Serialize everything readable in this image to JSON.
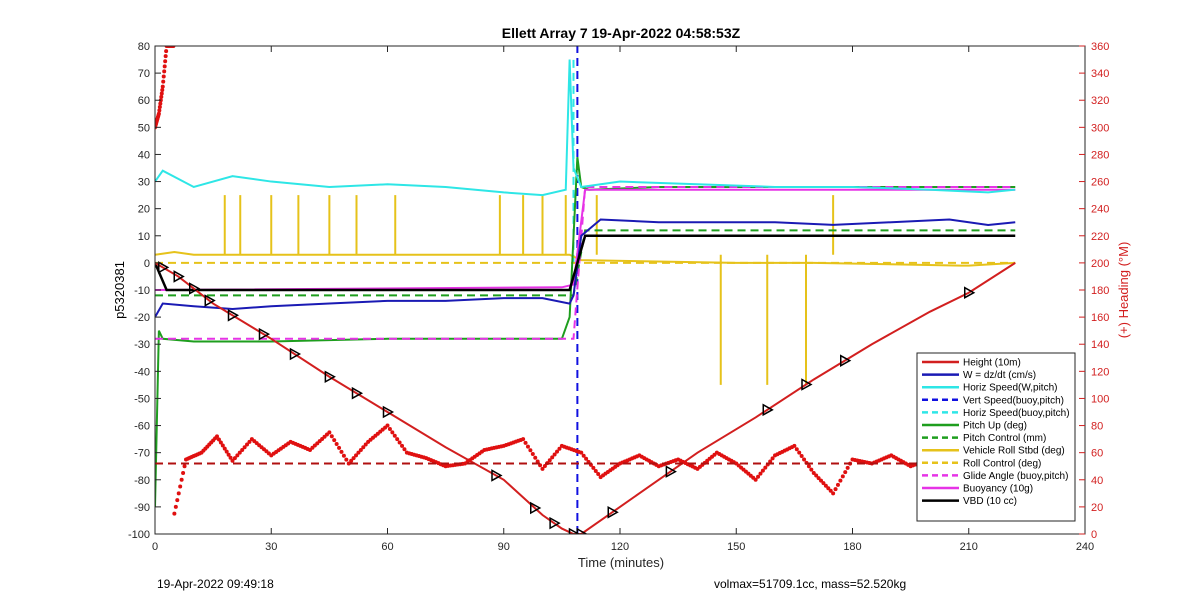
{
  "footer": {
    "left": "19-Apr-2022 09:49:18",
    "right": "volmax=51709.1cc, mass=52.520kg"
  },
  "chart_data": {
    "type": "line",
    "title": "Ellett Array 7 19-Apr-2022 04:58:53Z",
    "xlabel": "Time (minutes)",
    "ylabel": "p5320381",
    "ylabel_right": "(+) Heading (°M)",
    "xlim": [
      0,
      240
    ],
    "ylim": [
      -100,
      80
    ],
    "ylim_right": [
      0,
      360
    ],
    "xticks": [
      0,
      30,
      60,
      90,
      120,
      150,
      180,
      210,
      240
    ],
    "yticks": [
      -100,
      -90,
      -80,
      -70,
      -60,
      -50,
      -40,
      -30,
      -20,
      -10,
      0,
      10,
      20,
      30,
      40,
      50,
      60,
      70,
      80
    ],
    "yticks_right": [
      0,
      20,
      40,
      60,
      80,
      100,
      120,
      140,
      160,
      180,
      200,
      220,
      240,
      260,
      280,
      300,
      320,
      340,
      360
    ],
    "grid": false,
    "legend_position": "bottom-right",
    "colors": {
      "height": "#d21f1f",
      "w": "#1a1ab4",
      "horiz_w": "#2ee6e6",
      "vert_buoy": "#1010e0",
      "horiz_buoy": "#2ee6e6",
      "pitch_up": "#1e9e1e",
      "pitch_control": "#1e9e1e",
      "roll": "#e6c21a",
      "roll_control": "#e6c21a",
      "glide": "#e633e6",
      "buoyancy": "#e633e6",
      "vbd": "#000000",
      "heading": "#e01010"
    },
    "series": [
      {
        "name": "Height (10m)",
        "key": "height",
        "style": "solid",
        "marker": "triangle",
        "x": [
          0,
          6,
          15,
          30,
          45,
          60,
          75,
          90,
          100,
          105,
          108,
          110,
          115,
          125,
          140,
          155,
          170,
          185,
          200,
          210,
          222
        ],
        "y": [
          0,
          -5,
          -15,
          -28,
          -42,
          -55,
          -68,
          -80,
          -93,
          -98,
          -100,
          -100,
          -95,
          -85,
          -70,
          -57,
          -43,
          -30,
          -18,
          -11,
          0
        ]
      },
      {
        "name": "W = dz/dt (cm/s)",
        "key": "w",
        "style": "solid",
        "x": [
          0,
          2,
          10,
          20,
          30,
          45,
          60,
          75,
          90,
          100,
          107,
          108,
          110,
          115,
          130,
          145,
          160,
          175,
          190,
          205,
          215,
          222
        ],
        "y": [
          -20,
          -15,
          -16,
          -17,
          -16,
          -15,
          -14,
          -14,
          -13,
          -13,
          -15,
          -12,
          10,
          16,
          15,
          15,
          15,
          14,
          15,
          16,
          14,
          15
        ]
      },
      {
        "name": "Horiz Speed(W,pitch)",
        "key": "horiz_w",
        "style": "solid",
        "x": [
          0,
          2,
          10,
          20,
          30,
          45,
          60,
          75,
          90,
          100,
          106,
          107,
          108,
          110,
          120,
          140,
          160,
          180,
          200,
          215,
          222
        ],
        "y": [
          30,
          34,
          28,
          32,
          30,
          28,
          29,
          28,
          26,
          25,
          27,
          75,
          35,
          28,
          30,
          29,
          28,
          28,
          27,
          26,
          27
        ]
      },
      {
        "name": "Vert Speed(buoy,pitch)",
        "key": "vert_buoy",
        "style": "dashed",
        "x": [
          109,
          109
        ],
        "y": [
          -100,
          80
        ]
      },
      {
        "name": "Horiz Speed(buoy,pitch)",
        "key": "horiz_buoy",
        "style": "dashed",
        "x": [
          108,
          108
        ],
        "y": [
          0,
          75
        ]
      },
      {
        "name": "Pitch Up (deg)",
        "key": "pitch_up",
        "style": "solid",
        "x": [
          0,
          1,
          2,
          10,
          30,
          60,
          90,
          105,
          107,
          109,
          110,
          112,
          130,
          160,
          190,
          222
        ],
        "y": [
          -90,
          -25,
          -28,
          -29,
          -29,
          -28,
          -28,
          -28,
          -20,
          39,
          28,
          27,
          28,
          28,
          28,
          28
        ]
      },
      {
        "name": "Pitch Control (mm)",
        "key": "pitch_control",
        "style": "dashed",
        "x": [
          0,
          108,
          111,
          222
        ],
        "y": [
          -12,
          -12,
          12,
          12
        ]
      },
      {
        "name": "Vehicle Roll Stbd (deg)",
        "key": "roll",
        "style": "solid",
        "x": [
          0,
          5,
          10,
          30,
          60,
          90,
          107,
          110,
          150,
          167,
          170,
          208,
          210,
          222
        ],
        "y": [
          3,
          4,
          3,
          3,
          3,
          3,
          3,
          1,
          0,
          0,
          0,
          -1,
          -1,
          0
        ]
      },
      {
        "name": "Roll Control (deg)",
        "key": "roll_control",
        "style": "dashed",
        "x": [
          0,
          108,
          110,
          222
        ],
        "y": [
          0,
          0,
          0,
          0
        ]
      },
      {
        "name": "Glide Angle (buoy,pitch)",
        "key": "glide",
        "style": "dashed",
        "x": [
          0,
          108,
          111,
          222
        ],
        "y": [
          -28,
          -28,
          28,
          28
        ]
      },
      {
        "name": "Buoyancy (10g)",
        "key": "buoyancy",
        "style": "solid",
        "x": [
          0,
          105,
          108,
          111,
          222
        ],
        "y": [
          -10,
          -9,
          -8,
          27,
          27
        ]
      },
      {
        "name": "VBD (10 cc)",
        "key": "vbd",
        "style": "solid",
        "x": [
          0,
          3,
          107,
          111,
          222
        ],
        "y": [
          0,
          -10,
          -10,
          10,
          10
        ]
      }
    ],
    "heading": {
      "axis": "right",
      "x": [
        0,
        1,
        2,
        3,
        5,
        8,
        12,
        16,
        20,
        25,
        30,
        35,
        40,
        45,
        50,
        55,
        60,
        65,
        70,
        75,
        80,
        85,
        90,
        95,
        100,
        105,
        110,
        115,
        120,
        125,
        130,
        135,
        140,
        145,
        150,
        155,
        160,
        165,
        170,
        175,
        180,
        185,
        190,
        195,
        200,
        205,
        210,
        215,
        220
      ],
      "y": [
        300,
        310,
        330,
        360,
        15,
        55,
        60,
        72,
        54,
        70,
        58,
        68,
        62,
        75,
        52,
        68,
        80,
        60,
        56,
        50,
        52,
        62,
        65,
        70,
        48,
        65,
        60,
        42,
        52,
        58,
        50,
        55,
        48,
        60,
        52,
        40,
        58,
        65,
        45,
        30,
        55,
        52,
        58,
        50,
        55,
        62,
        70,
        58,
        50
      ]
    },
    "heading_ref": {
      "axis": "right",
      "value": 52
    },
    "roll_spikes_x": [
      18,
      22,
      30,
      37,
      45,
      52,
      62,
      89,
      95,
      100,
      106,
      114,
      146,
      158,
      168,
      175
    ],
    "markers_x": [
      2,
      6,
      10,
      14,
      20,
      28,
      36,
      45,
      52,
      60,
      88,
      98,
      103,
      108,
      110,
      118,
      133,
      158,
      168,
      178,
      210
    ]
  }
}
